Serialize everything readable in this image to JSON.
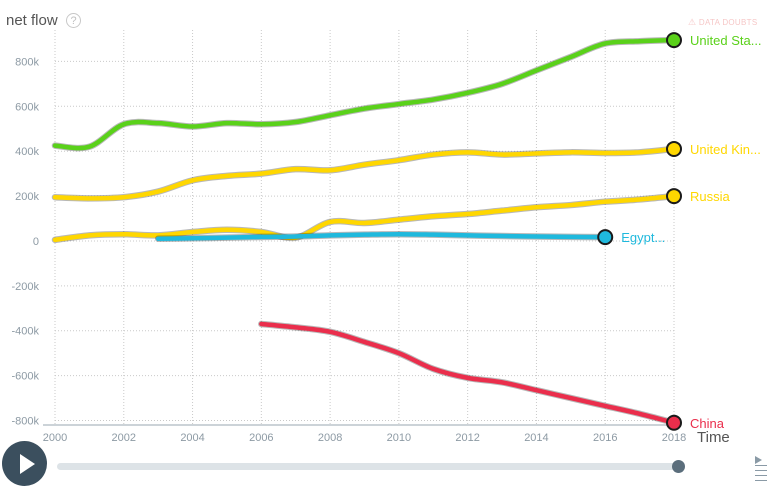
{
  "header": {
    "measure_label": "net flow",
    "help_symbol": "?",
    "doubts_label": "DATA DOUBTS",
    "doubts_symbol": "⚠"
  },
  "footer": {
    "time_label": "Time"
  },
  "colors": {
    "united_states": "#5ad11a",
    "united_kingdom": "#ffd700",
    "russia": "#ffd700",
    "egypt": "#1fb9dd",
    "china": "#ea2e4c"
  },
  "chart_data": {
    "type": "line",
    "xlim": [
      2000,
      2018
    ],
    "ylim": [
      -820000,
      940000
    ],
    "x_ticks": [
      2000,
      2002,
      2004,
      2006,
      2008,
      2010,
      2012,
      2014,
      2016,
      2018
    ],
    "x_tick_labels": [
      "2000",
      "2002",
      "2004",
      "2006",
      "2008",
      "2010",
      "2012",
      "2014",
      "2016",
      "2018"
    ],
    "y_ticks": [
      800000,
      600000,
      400000,
      200000,
      0,
      -200000,
      -400000,
      -600000,
      -800000
    ],
    "y_tick_labels": [
      "800k",
      "600k",
      "400k",
      "200k",
      "0",
      "-200k",
      "-400k",
      "-600k",
      "-800k"
    ],
    "grid": true,
    "series": [
      {
        "name": "United Sta...",
        "color": "#5ad11a",
        "x": [
          2000,
          2001,
          2002,
          2003,
          2004,
          2005,
          2006,
          2007,
          2008,
          2009,
          2010,
          2011,
          2012,
          2013,
          2014,
          2015,
          2016,
          2017,
          2018
        ],
        "y": [
          425000,
          420000,
          520000,
          525000,
          510000,
          525000,
          520000,
          530000,
          560000,
          590000,
          610000,
          630000,
          660000,
          700000,
          760000,
          820000,
          880000,
          890000,
          895000
        ]
      },
      {
        "name": "United Kin...",
        "color": "#ffd700",
        "x": [
          2000,
          2001,
          2002,
          2003,
          2004,
          2005,
          2006,
          2007,
          2008,
          2009,
          2010,
          2011,
          2012,
          2013,
          2014,
          2015,
          2016,
          2017,
          2018
        ],
        "y": [
          195000,
          190000,
          195000,
          220000,
          270000,
          290000,
          300000,
          320000,
          315000,
          340000,
          360000,
          385000,
          395000,
          385000,
          390000,
          395000,
          392000,
          395000,
          410000
        ]
      },
      {
        "name": "Russia",
        "color": "#ffd700",
        "x": [
          2000,
          2001,
          2002,
          2003,
          2004,
          2005,
          2006,
          2007,
          2008,
          2009,
          2010,
          2011,
          2012,
          2013,
          2014,
          2015,
          2016,
          2017,
          2018
        ],
        "y": [
          5000,
          25000,
          30000,
          25000,
          40000,
          50000,
          40000,
          15000,
          85000,
          80000,
          95000,
          110000,
          120000,
          135000,
          150000,
          160000,
          175000,
          185000,
          200000
        ]
      },
      {
        "name": "Egypt...",
        "color": "#1fb9dd",
        "x": [
          2003,
          2004,
          2005,
          2006,
          2007,
          2008,
          2009,
          2010,
          2011,
          2012,
          2013,
          2014,
          2015,
          2016
        ],
        "y": [
          10000,
          12000,
          15000,
          18000,
          20000,
          25000,
          28000,
          30000,
          28000,
          25000,
          22000,
          20000,
          18000,
          17000
        ]
      },
      {
        "name": "China",
        "color": "#ea2e4c",
        "x": [
          2006,
          2007,
          2008,
          2009,
          2010,
          2011,
          2012,
          2013,
          2014,
          2015,
          2016,
          2017,
          2018
        ],
        "y": [
          -370000,
          -385000,
          -405000,
          -450000,
          -500000,
          -570000,
          -610000,
          -630000,
          -665000,
          -700000,
          -735000,
          -770000,
          -810000
        ]
      }
    ]
  }
}
